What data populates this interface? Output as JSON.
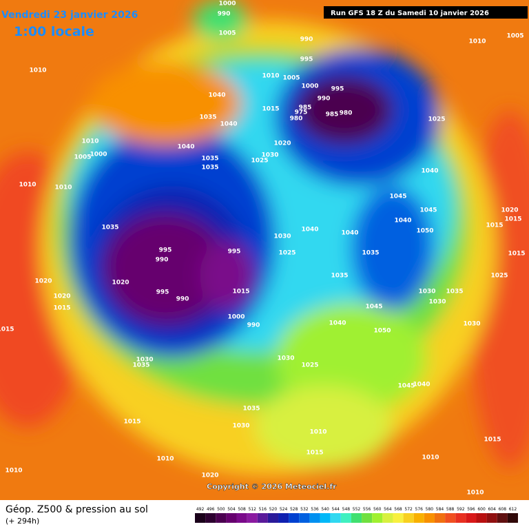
{
  "header": {
    "date": "Vendredi 23 janvier 2026",
    "time": "1:00 locale",
    "run": "Run GFS 18 Z du Samedi 10 janvier 2026"
  },
  "copyright": "Copyright © 2026 Meteociel.fr",
  "footer": {
    "title": "Géop. Z500 & pression au sol",
    "lead": "(+ 294h)"
  },
  "scale": {
    "values": [
      492,
      496,
      500,
      504,
      508,
      512,
      516,
      520,
      524,
      528,
      532,
      536,
      540,
      544,
      548,
      552,
      556,
      560,
      564,
      568,
      572,
      576,
      580,
      584,
      588,
      592,
      596,
      600,
      604,
      608,
      612
    ],
    "colors": [
      "#1a001a",
      "#2d0030",
      "#4b0050",
      "#66006e",
      "#7a0a8a",
      "#8a1aa0",
      "#5a1a9a",
      "#2a1a9a",
      "#1020b0",
      "#0040d0",
      "#0060e0",
      "#0090f0",
      "#00b8f8",
      "#30d8f0",
      "#40f0c0",
      "#40e070",
      "#70e040",
      "#a0f030",
      "#d8f040",
      "#f8f040",
      "#f8d020",
      "#f8b000",
      "#f89000",
      "#f07010",
      "#f05020",
      "#e83020",
      "#d81818",
      "#b81010",
      "#901010",
      "#601010",
      "#300808"
    ]
  },
  "isobar_labels": [
    1000,
    990,
    1005,
    1010,
    1010,
    1005,
    1040,
    1015,
    1035,
    1040,
    1010,
    1005,
    1000,
    1020,
    1025,
    1030,
    1010,
    1010,
    1035,
    995,
    990,
    995,
    1020,
    995,
    990,
    1015,
    1000,
    990,
    1020,
    1020,
    1015,
    1015,
    1030,
    1035,
    1030,
    1025,
    1040,
    1040,
    1035,
    1035,
    1045,
    1040,
    1050,
    1030,
    1025,
    1035,
    1030,
    1015,
    1010,
    1010,
    1020,
    1010,
    1015,
    1010,
    1010,
    1015,
    1030,
    1035,
    1030,
    1030,
    1045,
    1040,
    1040,
    1045,
    1045,
    1040,
    1050,
    1025,
    1005,
    1010,
    990,
    995,
    1000,
    995,
    990,
    985,
    975,
    980,
    985,
    980,
    1020,
    1015,
    1015,
    1015,
    1025,
    1035,
    1040,
    1035
  ]
}
